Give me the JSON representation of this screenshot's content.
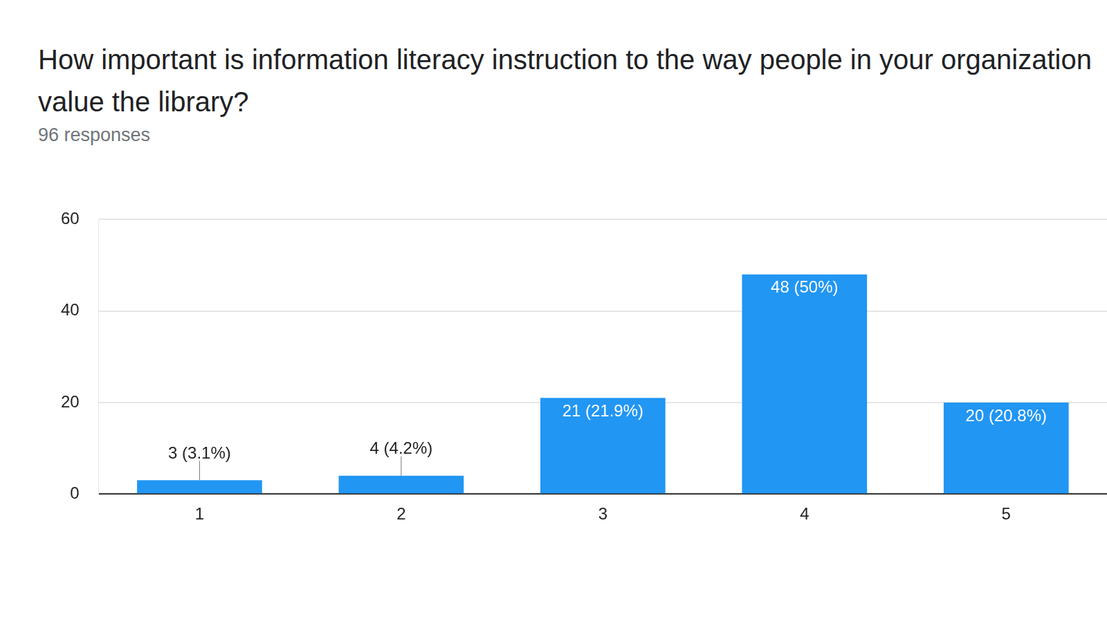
{
  "chart_data": {
    "type": "bar",
    "title": "How important is information literacy instruction to the way people in your organization value the library?",
    "subtitle": "96 responses",
    "categories": [
      "1",
      "2",
      "3",
      "4",
      "5"
    ],
    "values": [
      3,
      4,
      21,
      48,
      20
    ],
    "value_labels": [
      "3 (3.1%)",
      "4 (4.2%)",
      "21 (21.9%)",
      "48 (50%)",
      "20 (20.8%)"
    ],
    "color": "#2196f3",
    "ylim": [
      0,
      60
    ],
    "yticks": [
      0,
      20,
      40,
      60
    ],
    "grid": true,
    "data_labels": true
  }
}
